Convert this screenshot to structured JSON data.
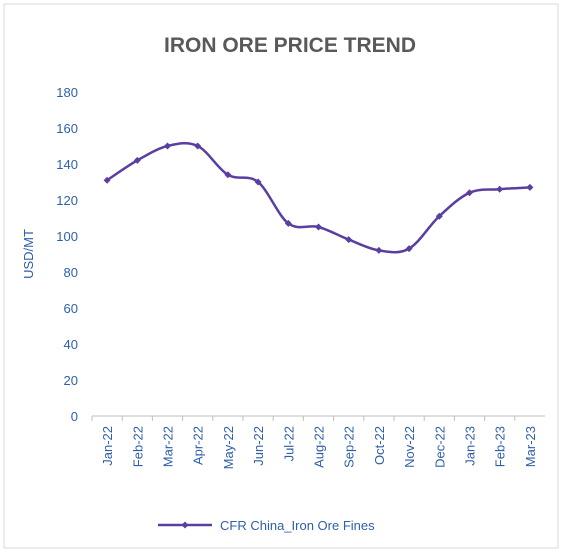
{
  "chart_data": {
    "type": "line",
    "title": "IRON ORE PRICE TREND",
    "y_label": "USD/MT",
    "categories": [
      "Jan-22",
      "Feb-22",
      "Mar-22",
      "Apr-22",
      "May-22",
      "Jun-22",
      "Jul-22",
      "Aug-22",
      "Sep-22",
      "Oct-22",
      "Nov-22",
      "Dec-22",
      "Jan-23",
      "Feb-23",
      "Mar-23"
    ],
    "series": [
      {
        "name": "CFR China_Iron Ore Fines",
        "color": "#5b3fa0",
        "values": [
          131,
          142,
          150,
          150,
          134,
          130,
          107,
          105,
          98,
          92,
          93,
          111,
          124,
          126,
          127
        ]
      }
    ],
    "ylim": [
      0,
      180
    ],
    "yticks": [
      0,
      20,
      40,
      60,
      80,
      100,
      120,
      140,
      160,
      180
    ],
    "smooth": true,
    "legend": "bottom"
  }
}
